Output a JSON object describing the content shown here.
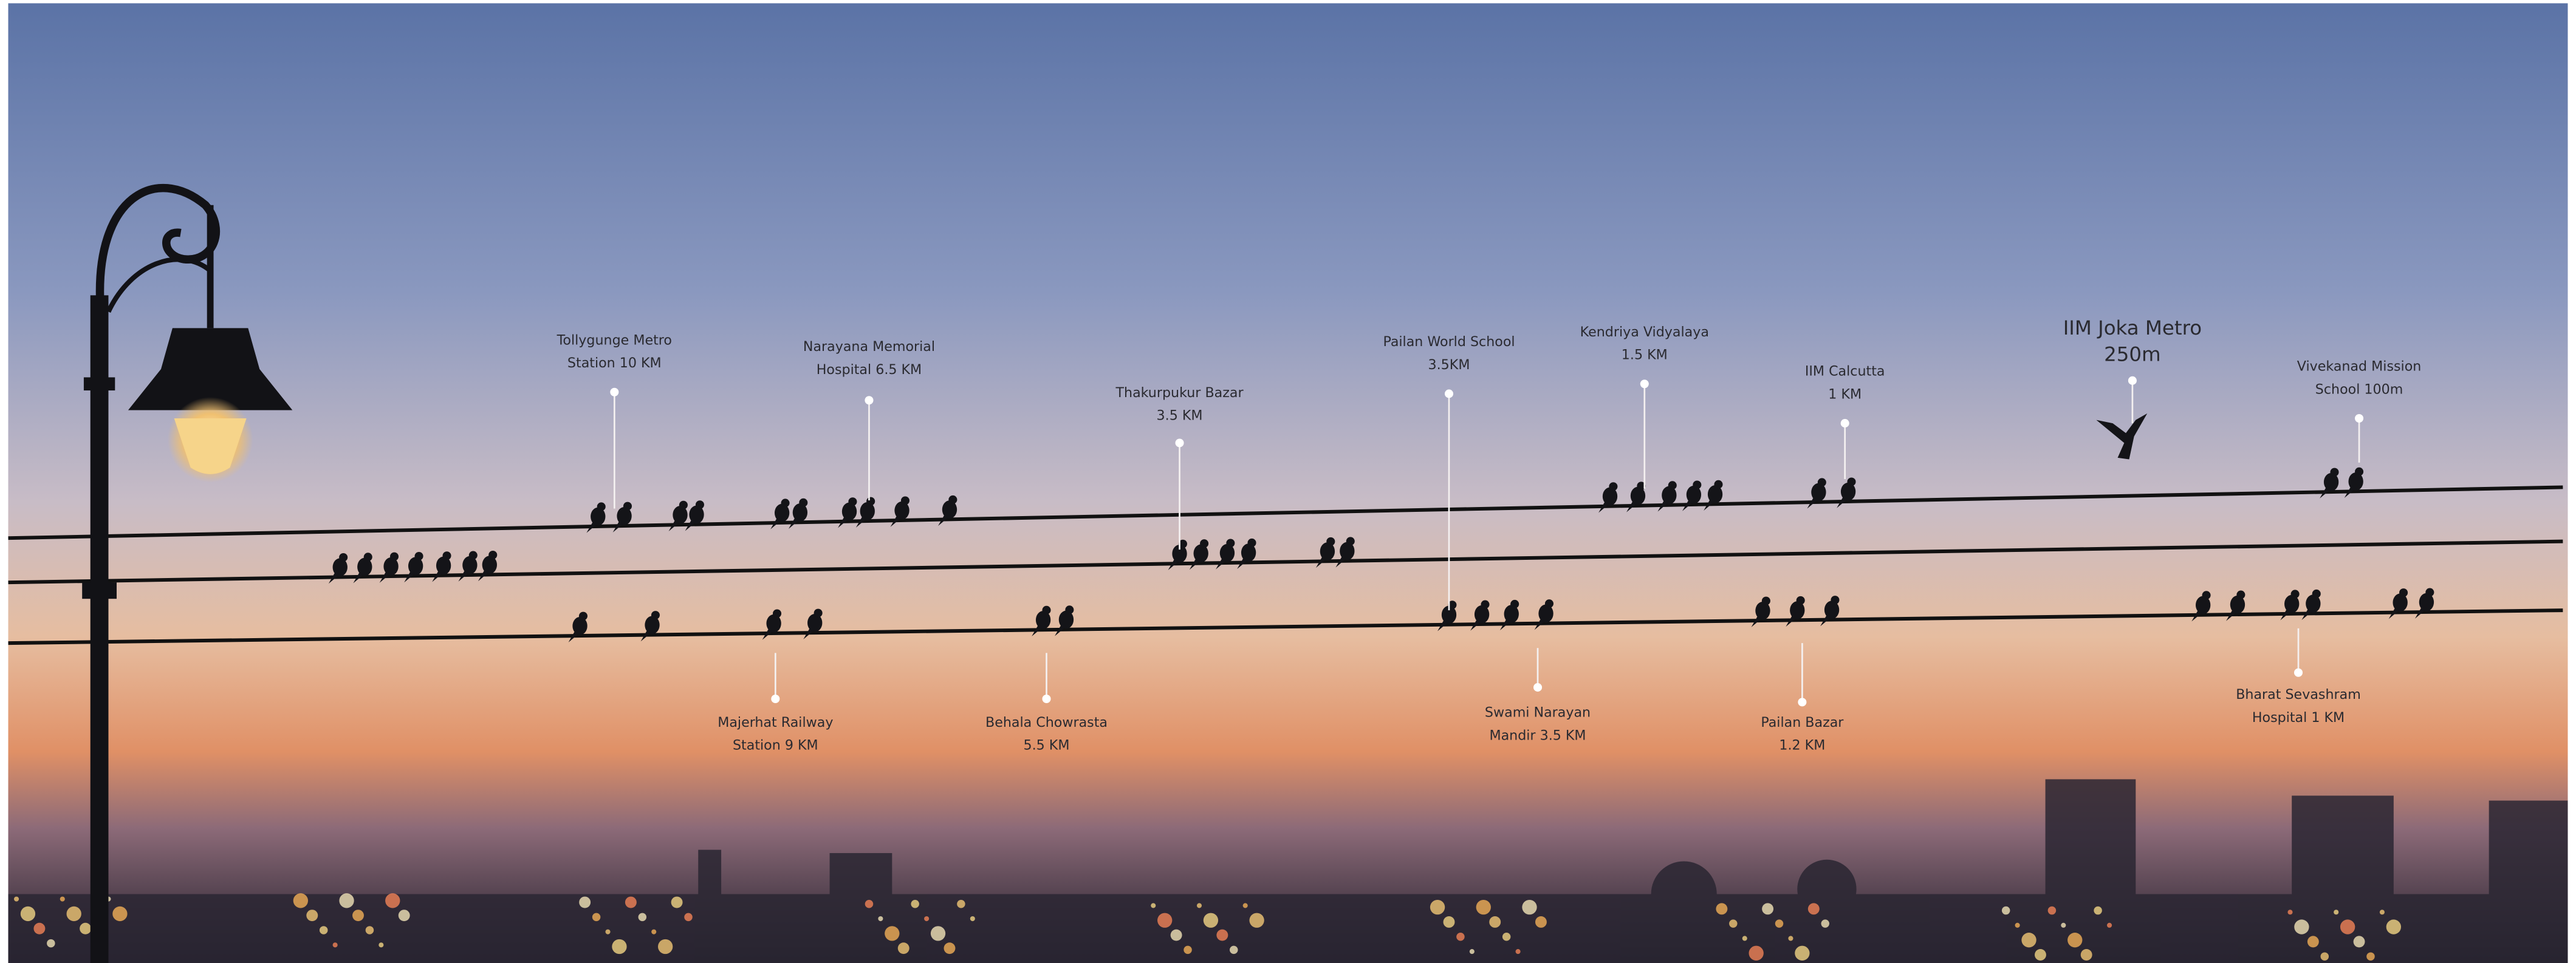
{
  "labels": [
    [
      "Tollygunge Metro",
      "Station 10 KM"
    ],
    [
      "Narayana Memorial",
      "Hospital 6.5 KM"
    ],
    [
      "Thakurpukur Bazar",
      "3.5 KM"
    ],
    [
      "Pailan World School",
      "3.5KM"
    ],
    [
      "Kendriya Vidyalaya",
      "1.5 KM"
    ],
    [
      "IIM Calcutta",
      "1 KM"
    ],
    [
      "IIM Joka Metro",
      "250m"
    ],
    [
      "Vivekanad Mission",
      "School 100m"
    ],
    [
      "Majerhat Railway",
      "Station 9 KM"
    ],
    [
      "Behala Chowrasta",
      "5.5 KM"
    ],
    [
      "Swami Narayan",
      "Mandir 3.5 KM"
    ],
    [
      "Pailan Bazar",
      "1.2 KM"
    ],
    [
      "Bharat Sevashram",
      "Hospital 1 KM"
    ]
  ]
}
